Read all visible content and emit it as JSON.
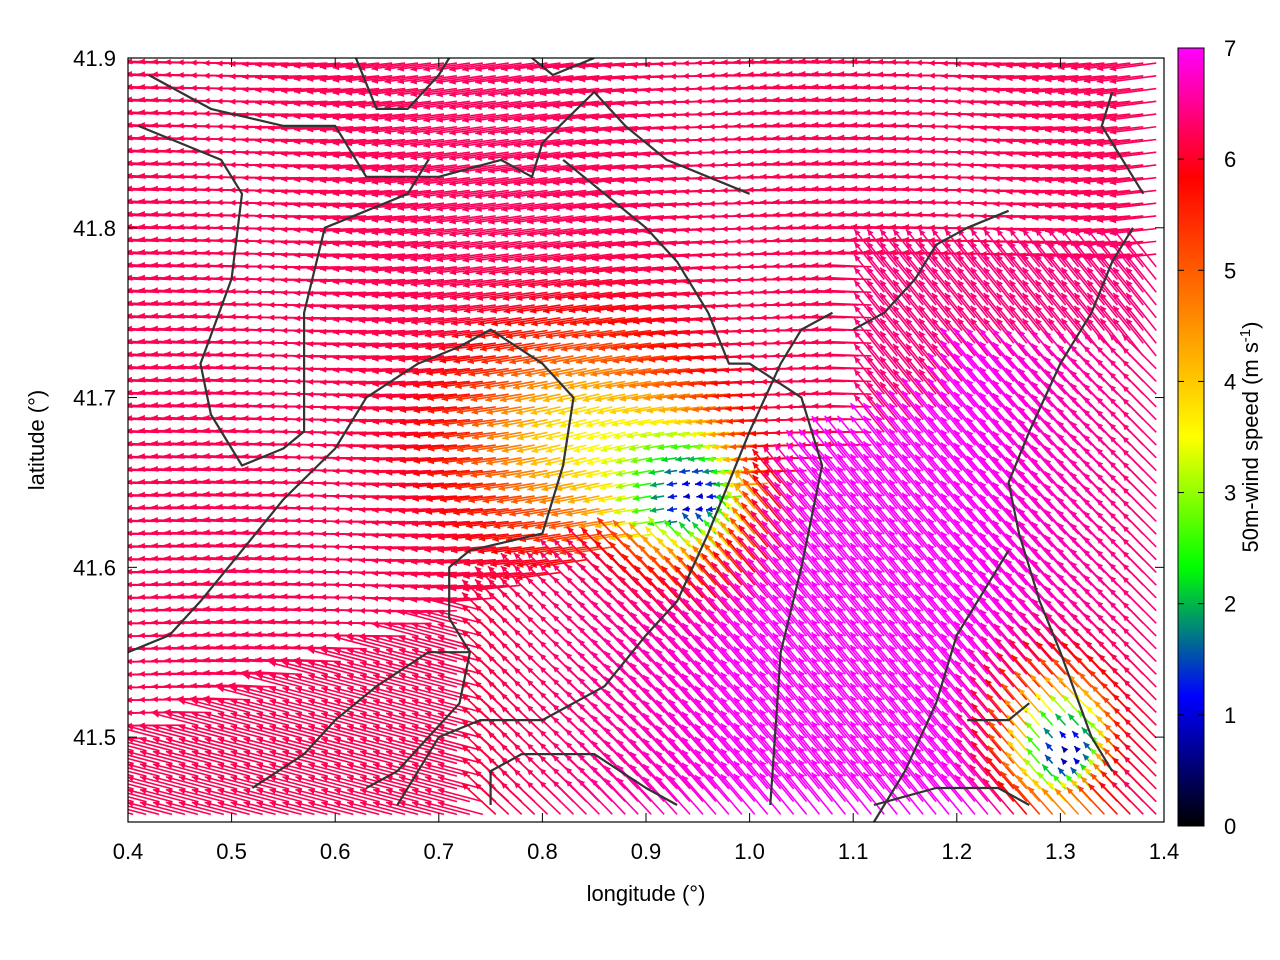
{
  "chart_data": {
    "type": "vector-field",
    "xlabel": "longitude (°)",
    "ylabel": "latitude (°)",
    "xlim": [
      0.4,
      1.4
    ],
    "ylim": [
      41.45,
      41.9
    ],
    "xticks": [
      "0.4",
      "0.5",
      "0.6",
      "0.7",
      "0.8",
      "0.9",
      "1.0",
      "1.1",
      "1.2",
      "1.3",
      "1.4"
    ],
    "yticks": [
      "41.5",
      "41.6",
      "41.7",
      "41.8",
      "41.9"
    ],
    "colorbar": {
      "label_main": "50m-wind speed (m s",
      "label_sup": "-1",
      "label_end": ")",
      "range": [
        0,
        7
      ],
      "ticks": [
        "0",
        "1",
        "2",
        "3",
        "4",
        "5",
        "6",
        "7"
      ],
      "stops": [
        "#000000",
        "#0000ff",
        "#00ff00",
        "#ffff00",
        "#ff8000",
        "#ff0000",
        "#ff00ff"
      ]
    },
    "grid": false,
    "contours": [
      [
        [
          0.42,
          41.89
        ],
        [
          0.48,
          41.87
        ],
        [
          0.55,
          41.86
        ],
        [
          0.6,
          41.86
        ],
        [
          0.63,
          41.83
        ],
        [
          0.7,
          41.83
        ],
        [
          0.76,
          41.84
        ],
        [
          0.79,
          41.83
        ],
        [
          0.8,
          41.85
        ],
        [
          0.85,
          41.88
        ],
        [
          0.88,
          41.86
        ],
        [
          0.92,
          41.84
        ],
        [
          1.0,
          41.82
        ]
      ],
      [
        [
          0.41,
          41.86
        ],
        [
          0.45,
          41.85
        ],
        [
          0.49,
          41.84
        ],
        [
          0.51,
          41.82
        ],
        [
          0.5,
          41.77
        ],
        [
          0.47,
          41.72
        ],
        [
          0.48,
          41.69
        ],
        [
          0.51,
          41.66
        ],
        [
          0.55,
          41.67
        ],
        [
          0.57,
          41.68
        ],
        [
          0.57,
          41.75
        ],
        [
          0.59,
          41.8
        ],
        [
          0.63,
          41.81
        ],
        [
          0.67,
          41.82
        ],
        [
          0.69,
          41.84
        ]
      ],
      [
        [
          0.62,
          41.9
        ],
        [
          0.64,
          41.87
        ],
        [
          0.67,
          41.87
        ],
        [
          0.7,
          41.89
        ],
        [
          0.71,
          41.9
        ]
      ],
      [
        [
          0.79,
          41.9
        ],
        [
          0.81,
          41.89
        ],
        [
          0.85,
          41.9
        ]
      ],
      [
        [
          0.82,
          41.84
        ],
        [
          0.86,
          41.82
        ],
        [
          0.9,
          41.8
        ],
        [
          0.93,
          41.78
        ],
        [
          0.96,
          41.75
        ],
        [
          0.98,
          41.72
        ],
        [
          1.0,
          41.72
        ],
        [
          1.05,
          41.7
        ],
        [
          1.07,
          41.66
        ],
        [
          1.05,
          41.6
        ],
        [
          1.03,
          41.55
        ],
        [
          1.02,
          41.46
        ]
      ],
      [
        [
          0.4,
          41.55
        ],
        [
          0.44,
          41.56
        ],
        [
          0.47,
          41.58
        ],
        [
          0.51,
          41.61
        ],
        [
          0.55,
          41.64
        ],
        [
          0.6,
          41.67
        ],
        [
          0.63,
          41.7
        ],
        [
          0.68,
          41.72
        ],
        [
          0.72,
          41.73
        ],
        [
          0.75,
          41.74
        ],
        [
          0.8,
          41.72
        ],
        [
          0.83,
          41.7
        ],
        [
          0.82,
          41.66
        ],
        [
          0.8,
          41.62
        ],
        [
          0.73,
          41.61
        ],
        [
          0.71,
          41.6
        ],
        [
          0.71,
          41.57
        ],
        [
          0.73,
          41.55
        ]
      ],
      [
        [
          0.52,
          41.47
        ],
        [
          0.57,
          41.49
        ],
        [
          0.6,
          41.51
        ],
        [
          0.64,
          41.53
        ],
        [
          0.69,
          41.55
        ],
        [
          0.73,
          41.55
        ],
        [
          0.72,
          41.52
        ],
        [
          0.69,
          41.5
        ],
        [
          0.66,
          41.48
        ],
        [
          0.63,
          41.47
        ]
      ],
      [
        [
          0.66,
          41.46
        ],
        [
          0.7,
          41.5
        ],
        [
          0.74,
          41.51
        ],
        [
          0.8,
          41.51
        ],
        [
          0.86,
          41.53
        ],
        [
          0.9,
          41.56
        ],
        [
          0.93,
          41.58
        ],
        [
          0.96,
          41.62
        ],
        [
          0.98,
          41.65
        ],
        [
          1.0,
          41.68
        ],
        [
          1.03,
          41.72
        ],
        [
          1.05,
          41.74
        ],
        [
          1.08,
          41.75
        ]
      ],
      [
        [
          0.75,
          41.46
        ],
        [
          0.75,
          41.48
        ],
        [
          0.78,
          41.49
        ],
        [
          0.85,
          41.49
        ],
        [
          0.9,
          41.47
        ],
        [
          0.93,
          41.46
        ]
      ],
      [
        [
          1.1,
          41.74
        ],
        [
          1.13,
          41.75
        ],
        [
          1.16,
          41.77
        ],
        [
          1.18,
          41.79
        ],
        [
          1.21,
          41.8
        ],
        [
          1.25,
          41.81
        ]
      ],
      [
        [
          1.35,
          41.48
        ],
        [
          1.33,
          41.5
        ],
        [
          1.3,
          41.55
        ],
        [
          1.28,
          41.58
        ],
        [
          1.26,
          41.62
        ],
        [
          1.25,
          41.65
        ],
        [
          1.27,
          41.68
        ],
        [
          1.3,
          41.72
        ],
        [
          1.33,
          41.75
        ],
        [
          1.35,
          41.78
        ],
        [
          1.37,
          41.8
        ]
      ],
      [
        [
          1.12,
          41.45
        ],
        [
          1.15,
          41.48
        ],
        [
          1.18,
          41.52
        ],
        [
          1.2,
          41.56
        ],
        [
          1.23,
          41.59
        ],
        [
          1.25,
          41.61
        ]
      ],
      [
        [
          1.21,
          41.51
        ],
        [
          1.25,
          41.51
        ],
        [
          1.27,
          41.52
        ]
      ],
      [
        [
          1.12,
          41.46
        ],
        [
          1.18,
          41.47
        ],
        [
          1.24,
          41.47
        ],
        [
          1.27,
          41.46
        ]
      ],
      [
        [
          1.35,
          41.88
        ],
        [
          1.34,
          41.86
        ],
        [
          1.36,
          41.84
        ],
        [
          1.38,
          41.82
        ]
      ]
    ]
  }
}
